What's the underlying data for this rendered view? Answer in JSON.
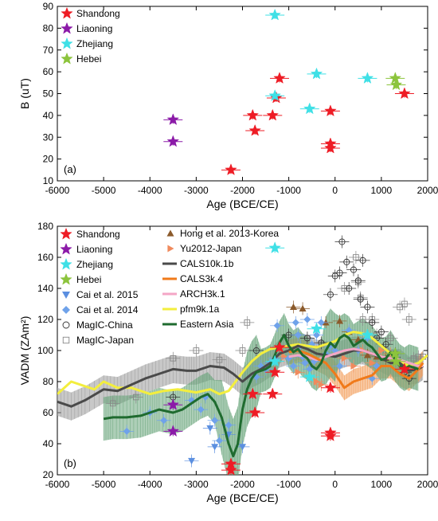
{
  "chart_data": [
    {
      "type": "scatter",
      "panel_label": "(a)",
      "xlabel": "Age (BCE/CE)",
      "ylabel": "B (uT)",
      "xlim": [
        -6000,
        2000
      ],
      "ylim": [
        10,
        90
      ],
      "xticks": [
        -6000,
        -5000,
        -4000,
        -3000,
        -2000,
        -1000,
        0,
        1000,
        2000
      ],
      "yticks": [
        10,
        20,
        30,
        40,
        50,
        60,
        70,
        80,
        90
      ],
      "legend_position": "top-left",
      "series": [
        {
          "name": "Shandong",
          "color": "#ee1c25",
          "marker": "star",
          "points": [
            [
              -2250,
              15
            ],
            [
              -1780,
              40
            ],
            [
              -1730,
              33
            ],
            [
              -1350,
              40
            ],
            [
              -1200,
              57
            ],
            [
              -1270,
              48
            ],
            [
              -100,
              42
            ],
            [
              -100,
              27
            ],
            [
              -100,
              25
            ],
            [
              1500,
              50
            ]
          ]
        },
        {
          "name": "Liaoning",
          "color": "#8b1aa8",
          "marker": "star",
          "points": [
            [
              -3500,
              38
            ],
            [
              -3500,
              28
            ]
          ]
        },
        {
          "name": "Zhejiang",
          "color": "#3fe0e6",
          "marker": "star",
          "points": [
            [
              -1300,
              86
            ],
            [
              -1300,
              49
            ],
            [
              -400,
              59
            ],
            [
              -550,
              43
            ],
            [
              700,
              57
            ]
          ]
        },
        {
          "name": "Hebei",
          "color": "#8cc43c",
          "marker": "star",
          "points": [
            [
              1300,
              57
            ],
            [
              1320,
              54
            ]
          ]
        }
      ]
    },
    {
      "type": "line",
      "panel_label": "(b)",
      "xlabel": "Age (BCE/CE)",
      "ylabel": "VADM (ZAm²)",
      "xlim": [
        -6000,
        2000
      ],
      "ylim": [
        20,
        180
      ],
      "xticks": [
        -6000,
        -5000,
        -4000,
        -3000,
        -2000,
        -1000,
        0,
        1000,
        2000
      ],
      "yticks": [
        20,
        40,
        60,
        80,
        100,
        120,
        140,
        160,
        180
      ],
      "legend_position": "top",
      "scatter_series": [
        {
          "name": "Shandong",
          "color": "#ee1c25",
          "marker": "star",
          "points": [
            [
              -2250,
              27
            ],
            [
              -2250,
              23
            ],
            [
              -1780,
              72
            ],
            [
              -1730,
              60
            ],
            [
              -1350,
              72
            ],
            [
              -1300,
              86
            ],
            [
              -1200,
              102
            ],
            [
              -100,
              76
            ],
            [
              -100,
              47
            ],
            [
              -100,
              45
            ],
            [
              1500,
              88
            ]
          ]
        },
        {
          "name": "Liaoning",
          "color": "#8b1aa8",
          "marker": "star",
          "points": [
            [
              -3500,
              65
            ],
            [
              -3500,
              48
            ]
          ]
        },
        {
          "name": "Zhejiang",
          "color": "#3fe0e6",
          "marker": "star",
          "points": [
            [
              -1300,
              166
            ],
            [
              -1300,
              93
            ],
            [
              -400,
              114
            ],
            [
              -550,
              83
            ],
            [
              700,
              110
            ]
          ]
        },
        {
          "name": "Hebei",
          "color": "#8cc43c",
          "marker": "star",
          "points": [
            [
              1300,
              98
            ],
            [
              1320,
              93
            ]
          ]
        },
        {
          "name": "Hong et al. 2013-Korea",
          "color": "#8b5a2b",
          "marker": "triangle-up",
          "points": [
            [
              -900,
              128
            ],
            [
              -700,
              127
            ],
            [
              -200,
              118
            ],
            [
              100,
              119
            ],
            [
              300,
              112
            ],
            [
              500,
              107
            ],
            [
              700,
              97
            ],
            [
              900,
              96
            ],
            [
              1100,
              95
            ]
          ]
        },
        {
          "name": "Yu2012-Japan",
          "color": "#f08a5d",
          "marker": "triangle-right",
          "points": [
            [
              -1100,
              96
            ],
            [
              -800,
              86
            ],
            [
              -400,
              80
            ],
            [
              -300,
              78
            ],
            [
              200,
              95
            ],
            [
              400,
              90
            ],
            [
              600,
              100
            ],
            [
              800,
              92
            ],
            [
              1000,
              100
            ],
            [
              1200,
              98
            ]
          ]
        },
        {
          "name": "Cai et al. 2015",
          "color": "#5b8fe0",
          "marker": "triangle-down",
          "points": [
            [
              -3100,
              29
            ],
            [
              -2600,
              38
            ],
            [
              -2300,
              46
            ],
            [
              -2000,
              38
            ],
            [
              -2700,
              50
            ]
          ]
        },
        {
          "name": "Cai et al. 2014",
          "color": "#6fa2ea",
          "marker": "diamond",
          "points": [
            [
              -4500,
              48
            ],
            [
              -4000,
              60
            ],
            [
              -3700,
              55
            ],
            [
              -3100,
              68
            ],
            [
              -2900,
              62
            ],
            [
              -2800,
              70
            ],
            [
              -2600,
              55
            ],
            [
              -2500,
              42
            ],
            [
              -2300,
              52
            ],
            [
              -1700,
              83
            ],
            [
              -1600,
              90
            ],
            [
              -1500,
              88
            ],
            [
              -1400,
              92
            ],
            [
              -1300,
              95
            ],
            [
              -1250,
              116
            ],
            [
              -1000,
              95
            ],
            [
              -900,
              90
            ],
            [
              -850,
              118
            ],
            [
              -800,
              110
            ],
            [
              -750,
              103
            ],
            [
              -700,
              96
            ],
            [
              -650,
              92
            ],
            [
              -600,
              120
            ],
            [
              -550,
              88
            ],
            [
              -500,
              104
            ],
            [
              -450,
              93
            ],
            [
              -400,
              110
            ],
            [
              -300,
              118
            ],
            [
              -200,
              98
            ],
            [
              -100,
              103
            ],
            [
              0,
              100
            ],
            [
              100,
              90
            ],
            [
              300,
              113
            ],
            [
              500,
              100
            ],
            [
              700,
              108
            ],
            [
              800,
              82
            ],
            [
              900,
              90
            ]
          ]
        },
        {
          "name": "MagIC-China",
          "color": "#333333",
          "marker": "circle-open",
          "points": [
            [
              -3500,
              70
            ],
            [
              -1700,
              100
            ],
            [
              -1000,
              110
            ],
            [
              -600,
              108
            ],
            [
              -300,
              105
            ],
            [
              -100,
              136
            ],
            [
              0,
              148
            ],
            [
              100,
              150
            ],
            [
              150,
              170
            ],
            [
              250,
              157
            ],
            [
              300,
              140
            ],
            [
              400,
              152
            ],
            [
              500,
              145
            ],
            [
              550,
              133
            ],
            [
              600,
              158
            ],
            [
              700,
              128
            ],
            [
              800,
              118
            ],
            [
              900,
              108
            ],
            [
              1000,
              112
            ],
            [
              1100,
              104
            ],
            [
              1300,
              98
            ],
            [
              1400,
              92
            ],
            [
              1500,
              86
            ],
            [
              1600,
              82
            ]
          ]
        },
        {
          "name": "MagIC-Japan",
          "color": "#888888",
          "marker": "square-open",
          "points": [
            [
              -4800,
              66
            ],
            [
              -4300,
              70
            ],
            [
              -3500,
              95
            ],
            [
              -3000,
              100
            ],
            [
              -2500,
              94
            ],
            [
              -2000,
              100
            ],
            [
              -1900,
              118
            ],
            [
              -600,
              108
            ],
            [
              -300,
              104
            ],
            [
              200,
              140
            ],
            [
              450,
              160
            ],
            [
              500,
              144
            ],
            [
              550,
              134
            ],
            [
              600,
              120
            ],
            [
              800,
              120
            ],
            [
              900,
              110
            ],
            [
              1100,
              100
            ],
            [
              1200,
              108
            ],
            [
              1400,
              128
            ],
            [
              1500,
              130
            ],
            [
              1600,
              120
            ],
            [
              1700,
              95
            ],
            [
              1800,
              96
            ],
            [
              1900,
              96
            ]
          ]
        }
      ],
      "model_series": [
        {
          "name": "CALS10k.1b",
          "color": "#4a4a4a",
          "x": [
            -6000,
            -5700,
            -5400,
            -5000,
            -4700,
            -4400,
            -4100,
            -3800,
            -3500,
            -3200,
            -3000,
            -2700,
            -2400,
            -2200,
            -2000,
            -1800,
            -1600,
            -1400,
            -1200,
            -1000,
            -800,
            -600,
            -400,
            -200,
            0,
            200,
            400,
            600,
            800,
            1000,
            1200,
            1400,
            1600,
            1800,
            1900
          ],
          "y": [
            67,
            64,
            68,
            75,
            74,
            78,
            82,
            85,
            88,
            87,
            87,
            90,
            89,
            85,
            80,
            85,
            88,
            92,
            98,
            100,
            103,
            101,
            98,
            97,
            96,
            98,
            100,
            100,
            98,
            95,
            92,
            92,
            87,
            88,
            90
          ]
        },
        {
          "name": "CALS3k.4",
          "color": "#f07a1a",
          "x": [
            -1000,
            -800,
            -600,
            -400,
            -200,
            0,
            200,
            400,
            600,
            800,
            1000,
            1200,
            1400,
            1600,
            1800,
            1900
          ],
          "y": [
            99,
            100,
            98,
            95,
            92,
            85,
            76,
            80,
            82,
            84,
            90,
            90,
            85,
            82,
            88,
            92
          ]
        },
        {
          "name": "ARCH3k.1",
          "color": "#f4a6c6",
          "x": [
            -1000,
            -800,
            -600,
            -400,
            -200,
            0,
            200,
            400,
            600,
            800,
            1000,
            1200,
            1400,
            1600,
            1800,
            1900
          ],
          "y": [
            96,
            97,
            96,
            94,
            96,
            98,
            100,
            101,
            100,
            98,
            96,
            95,
            94,
            92,
            90,
            90
          ]
        },
        {
          "name": "pfm9k.1a",
          "color": "#f3ee3e",
          "x": [
            -6000,
            -5700,
            -5500,
            -5200,
            -5000,
            -4700,
            -4400,
            -4000,
            -3700,
            -3400,
            -3000,
            -2700,
            -2500,
            -2300,
            -2000,
            -1800,
            -1600,
            -1400,
            -1200,
            -1000,
            -800,
            -600,
            -400,
            -200,
            0,
            200,
            400,
            600,
            800,
            1000,
            1200,
            1400,
            1600,
            1800,
            2000
          ],
          "y": [
            72,
            80,
            78,
            75,
            80,
            76,
            76,
            72,
            74,
            75,
            73,
            75,
            72,
            74,
            86,
            93,
            98,
            101,
            102,
            103,
            104,
            103,
            102,
            104,
            106,
            110,
            112,
            111,
            108,
            103,
            98,
            93,
            90,
            92,
            97
          ]
        },
        {
          "name": "Eastern Asia",
          "color": "#1f6b2f",
          "x": [
            -5000,
            -4800,
            -4500,
            -4200,
            -4000,
            -3800,
            -3500,
            -3300,
            -3100,
            -2900,
            -2750,
            -2600,
            -2450,
            -2300,
            -2200,
            -2100,
            -2000,
            -1900,
            -1800,
            -1700,
            -1600,
            -1500,
            -1400,
            -1300,
            -1200,
            -1100,
            -1000,
            -900,
            -800,
            -700,
            -600,
            -500,
            -400,
            -300,
            -200,
            -100,
            0,
            100,
            200,
            300,
            400,
            500,
            600,
            700,
            800,
            900,
            1000,
            1100,
            1200,
            1300,
            1400,
            1500,
            1600,
            1700,
            1800
          ],
          "y": [
            56,
            57,
            57,
            58,
            60,
            62,
            60,
            62,
            66,
            70,
            72,
            67,
            57,
            40,
            32,
            40,
            62,
            75,
            82,
            86,
            87,
            88,
            90,
            97,
            105,
            110,
            103,
            99,
            101,
            97,
            95,
            90,
            88,
            92,
            100,
            105,
            102,
            108,
            110,
            108,
            103,
            105,
            107,
            104,
            102,
            98,
            94,
            95,
            99,
            94,
            90,
            88,
            90,
            89,
            88
          ]
        }
      ]
    }
  ]
}
